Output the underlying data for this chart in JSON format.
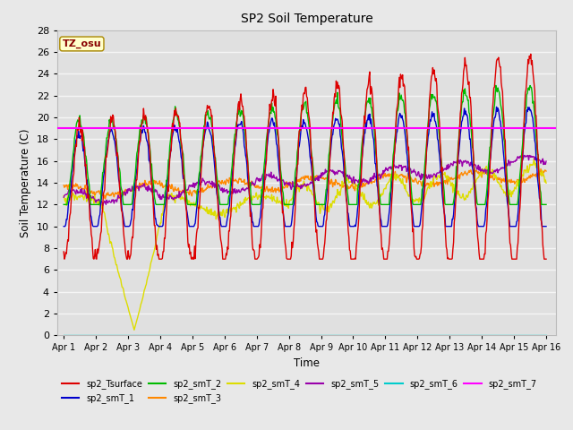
{
  "title": "SP2 Soil Temperature",
  "xlabel": "Time",
  "ylabel": "Soil Temperature (C)",
  "ylim": [
    0,
    28
  ],
  "yticks": [
    0,
    2,
    4,
    6,
    8,
    10,
    12,
    14,
    16,
    18,
    20,
    22,
    24,
    26,
    28
  ],
  "hline_y": 19.0,
  "hline_color": "#ff00ff",
  "bg_color": "#e8e8e8",
  "plot_bg_color": "#e0e0e0",
  "grid_color": "#f5f5f5",
  "tz_label": "TZ_osu",
  "tz_label_color": "#880000",
  "tz_box_facecolor": "#ffffcc",
  "tz_box_edgecolor": "#aa8800",
  "series_colors": {
    "sp2_Tsurface": "#dd0000",
    "sp2_smT_1": "#0000cc",
    "sp2_smT_2": "#00bb00",
    "sp2_smT_3": "#ff8800",
    "sp2_smT_4": "#dddd00",
    "sp2_smT_5": "#9900aa",
    "sp2_smT_6": "#00cccc",
    "sp2_smT_7": "#ff00ff"
  },
  "xtick_labels": [
    "Apr 1",
    "Apr 2",
    "Apr 3",
    "Apr 4",
    "Apr 5",
    "Apr 6",
    "Apr 7",
    "Apr 8",
    "Apr 9",
    "Apr 10",
    "Apr 11",
    "Apr 12",
    "Apr 13",
    "Apr 14",
    "Apr 15",
    "Apr 16"
  ],
  "xtick_positions": [
    0,
    1,
    2,
    3,
    4,
    5,
    6,
    7,
    8,
    9,
    10,
    11,
    12,
    13,
    14,
    15
  ],
  "figsize": [
    6.4,
    4.8
  ],
  "dpi": 100
}
